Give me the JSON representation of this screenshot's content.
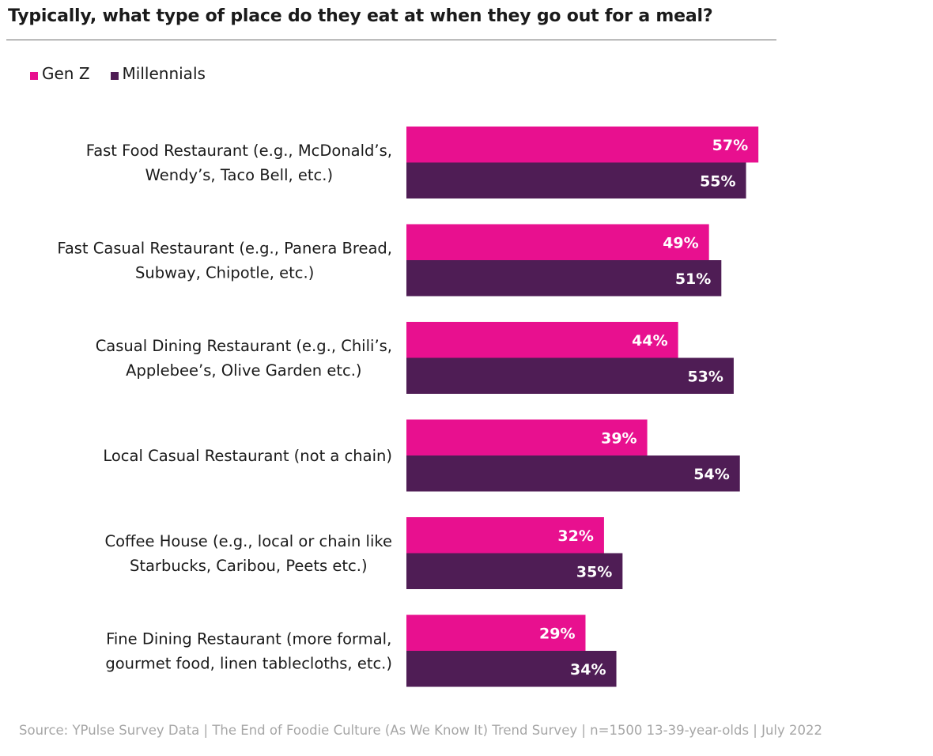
{
  "chart_data": {
    "type": "bar",
    "orientation": "horizontal",
    "title": "Typically, what type of place do they eat at when they go out for a meal?",
    "categories": [
      [
        "Fast Food Restaurant (e.g., McDonald’s,",
        "Wendy’s, Taco Bell, etc.)"
      ],
      [
        "Fast Casual Restaurant (e.g., Panera Bread,",
        "Subway, Chipotle, etc.)"
      ],
      [
        "Casual Dining Restaurant (e.g., Chili’s,",
        "Applebee’s, Olive Garden etc.)"
      ],
      [
        "Local Casual Restaurant (not a chain)"
      ],
      [
        "Coffee House (e.g., local or chain like",
        "Starbucks, Caribou, Peets etc.)"
      ],
      [
        "Fine Dining Restaurant (more formal,",
        "gourmet food, linen tablecloths, etc.)"
      ]
    ],
    "series": [
      {
        "name": "Gen Z",
        "color": "#e8108f",
        "values": [
          57,
          49,
          44,
          39,
          32,
          29
        ]
      },
      {
        "name": "Millennials",
        "color": "#4f1d55",
        "values": [
          55,
          51,
          53,
          54,
          35,
          34
        ]
      }
    ],
    "value_suffix": "%",
    "xlim": [
      0,
      100
    ],
    "grid": false,
    "legend_position": "top-left",
    "source": "Source: YPulse Survey Data | The End of Foodie Culture (As We Know It) Trend Survey | n=1500 13-39-year-olds | July 2022"
  }
}
